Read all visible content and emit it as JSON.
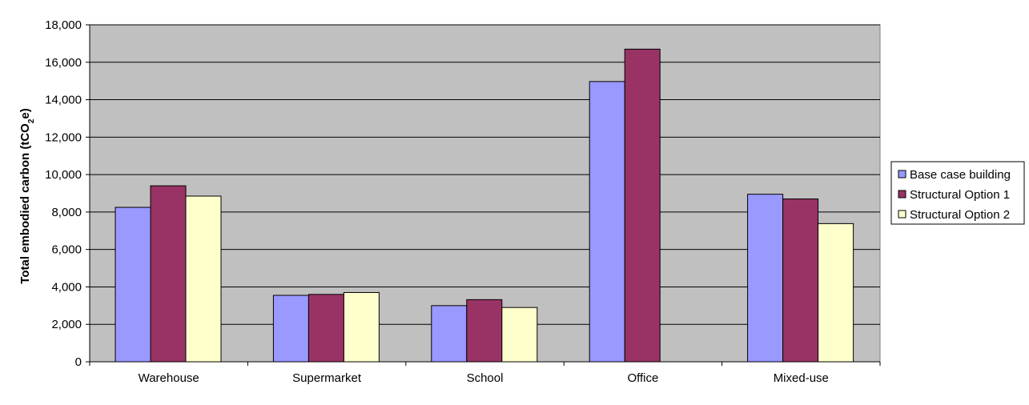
{
  "chart_data": {
    "type": "bar",
    "categories": [
      "Warehouse",
      "Supermarket",
      "School",
      "Office",
      "Mixed-use"
    ],
    "series": [
      {
        "name": "Base case building",
        "color": "#9999ff",
        "values": [
          8250,
          3550,
          3000,
          14970,
          8950
        ]
      },
      {
        "name": "Structural Option 1",
        "color": "#993366",
        "values": [
          9400,
          3600,
          3320,
          16700,
          8700
        ]
      },
      {
        "name": "Structural Option 2",
        "color": "#ffffcc",
        "values": [
          8850,
          3700,
          2900,
          null,
          7380
        ]
      }
    ],
    "ylabel_main": "Total embodied carbon (tCO",
    "ylabel_sub": "2",
    "ylabel_end": "e)",
    "ylim": [
      0,
      18000
    ],
    "yticks": [
      0,
      2000,
      4000,
      6000,
      8000,
      10000,
      12000,
      14000,
      16000,
      18000
    ],
    "ytick_labels": [
      "0",
      "2,000",
      "4,000",
      "6,000",
      "8,000",
      "10,000",
      "12,000",
      "14,000",
      "16,000",
      "18,000"
    ],
    "grid": true,
    "plot_background": "#c0c0c0",
    "legend_position": "right"
  }
}
